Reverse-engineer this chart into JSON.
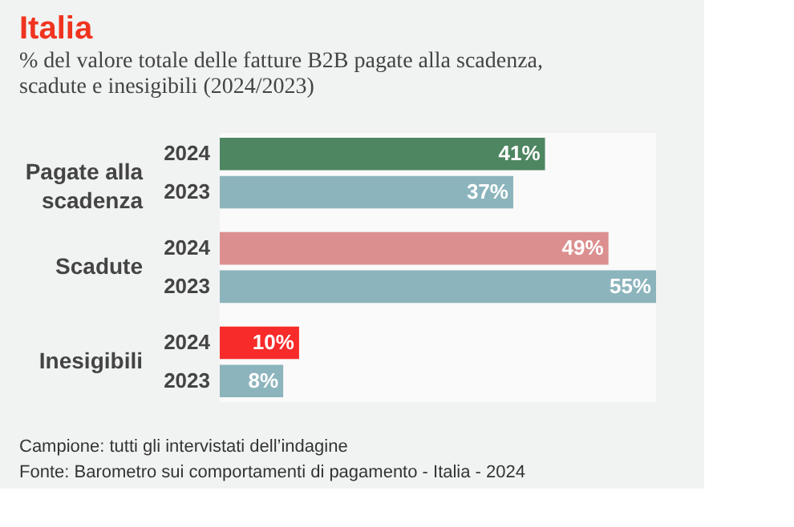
{
  "chart_data": {
    "type": "bar",
    "orientation": "horizontal",
    "title": "Italia",
    "subtitle": "% del valore totale delle fatture B2B pagate alla scadenza, scadute e inesigibili (2024/2023)",
    "categories": [
      "Pagate alla scadenza",
      "Scadute",
      "Inesigibili"
    ],
    "series": [
      {
        "name": "2024",
        "colors": [
          "#4e8661",
          "#dc8f8f",
          "#f72b2a"
        ],
        "values": [
          41,
          49,
          10
        ],
        "value_labels": [
          "41%",
          "49%",
          "10%"
        ]
      },
      {
        "name": "2023",
        "color": "#8cb4bc",
        "values": [
          37,
          55,
          8
        ],
        "value_labels": [
          "37%",
          "55%",
          "8%"
        ]
      }
    ],
    "annotations": [
      "Campione: tutti gli intervistati dell’indagine",
      "Fonte: Barometro sui comportamenti di pagamento - Italia - 2024"
    ]
  }
}
